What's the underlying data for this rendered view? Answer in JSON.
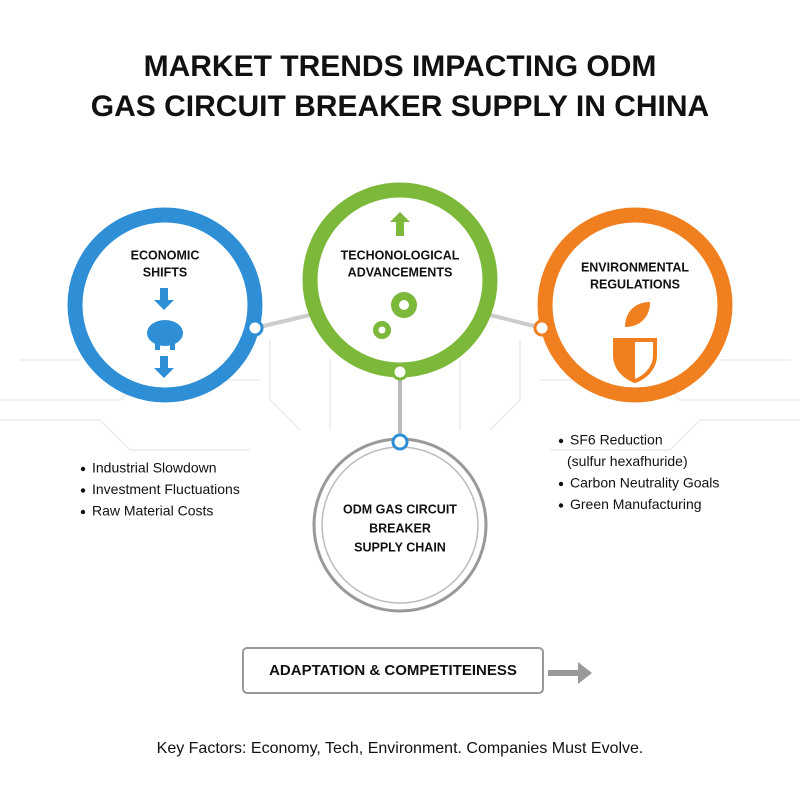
{
  "header": {
    "title_lines": [
      "MARKET TRENDS IMPACTING ODM",
      "GAS CIRCUIT BREAKER SUPPLY IN CHINA"
    ]
  },
  "nodes": [
    {
      "label_lines": [
        "ECONOMIC",
        "SHIFTS"
      ],
      "bullets": [
        [
          "Industrial Slowdown"
        ],
        [
          "Investment Fluctuations"
        ],
        [
          "Raw Material Costs"
        ]
      ]
    },
    {
      "label_lines": [
        "TECHONOLOGICAL",
        "ADVANCEMENTS"
      ]
    },
    {
      "label_lines": [
        "ENVIRONMENTAL",
        "REGULATIONS"
      ],
      "bullets": [
        [
          "SF6 Reduction",
          "(sulfur hexafhuride)"
        ],
        [
          "Carbon Neutrality Goals"
        ],
        [
          "Green Manufacturing"
        ]
      ]
    },
    {
      "label_lines": [
        "ODM GAS CIRCUIT",
        "BREAKER",
        "SUPPLY CHAIN"
      ]
    }
  ],
  "result": {
    "label": "ADAPTATION & COMPETITEINESS"
  },
  "footer": {
    "text": "Key Factors: Economy, Tech, Environment. Companies Must Evolve."
  }
}
